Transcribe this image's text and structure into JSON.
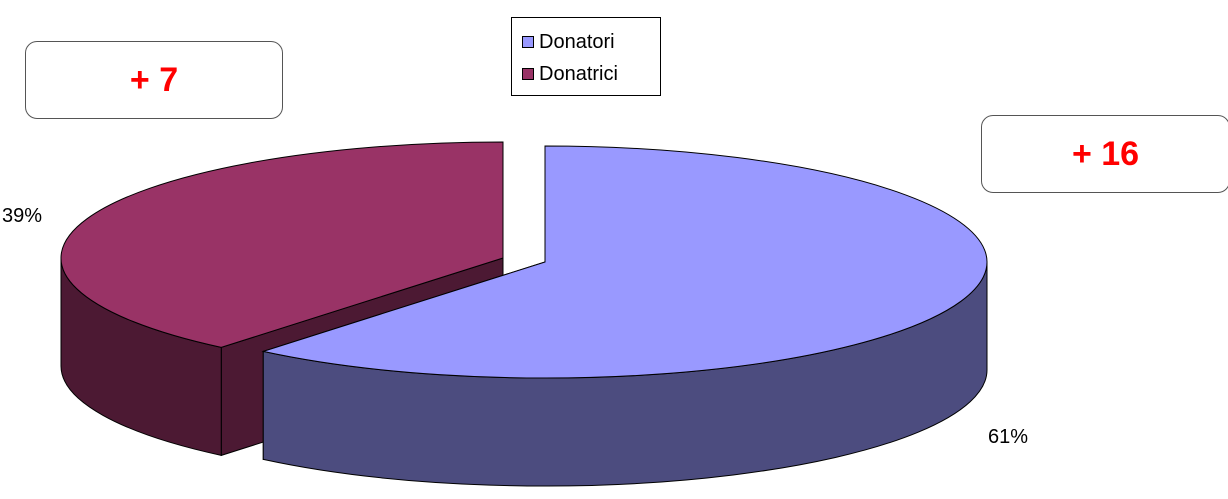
{
  "chart_data": {
    "type": "pie",
    "title": "",
    "slices": [
      {
        "label": "Donatori",
        "value": 61,
        "data_label": "61%",
        "color": "#9999ff",
        "side_color": "#4c4c7f",
        "callout": "+ 16"
      },
      {
        "label": "Donatrici",
        "value": 39,
        "data_label": "39%",
        "color": "#993366",
        "side_color": "#4c1933",
        "callout": "+ 7"
      }
    ],
    "legend": "top-center",
    "style": "3d-exploded"
  }
}
